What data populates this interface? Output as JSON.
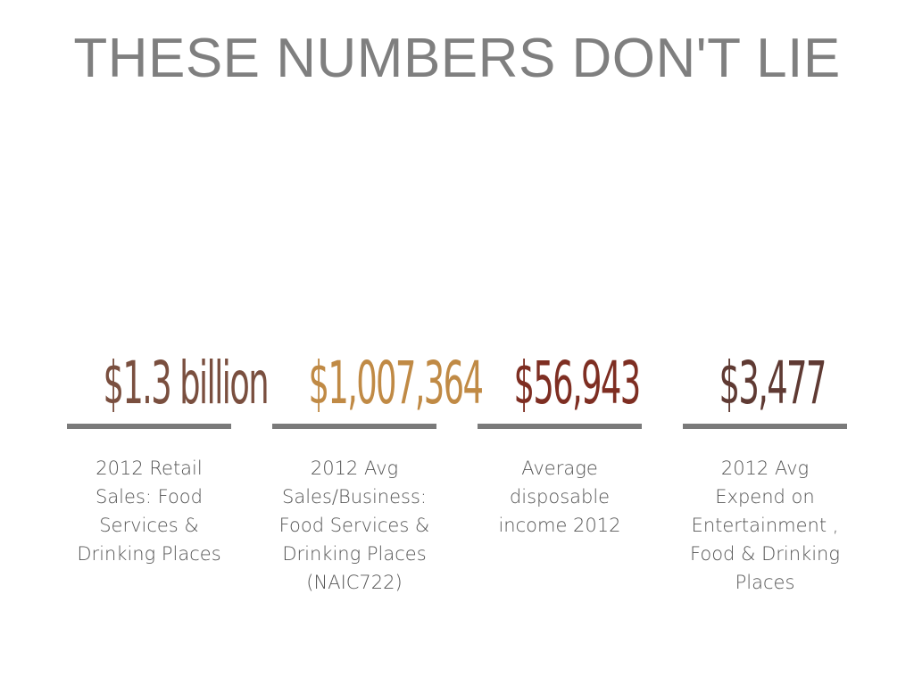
{
  "slide": {
    "title": "THESE NUMBERS DON'T LIE"
  },
  "stats": [
    {
      "value": "$1.3 billion",
      "label": "2012 Retail\nSales: Food\nServices &\nDrinking Places",
      "color": "#7a4f3f"
    },
    {
      "value": "$1,007,364",
      "label": "2012 Avg\nSales/Business:\nFood Services &\nDrinking Places\n(NAIC722)",
      "color": "#c08a45"
    },
    {
      "value": "$56,943",
      "label": "Average\ndisposable\nincome 2012",
      "color": "#7e2e22"
    },
    {
      "value": "$3,477",
      "label": "2012 Avg\nExpend on\nEntertainment ,\nFood & Drinking\nPlaces",
      "color": "#5f3a33"
    }
  ]
}
